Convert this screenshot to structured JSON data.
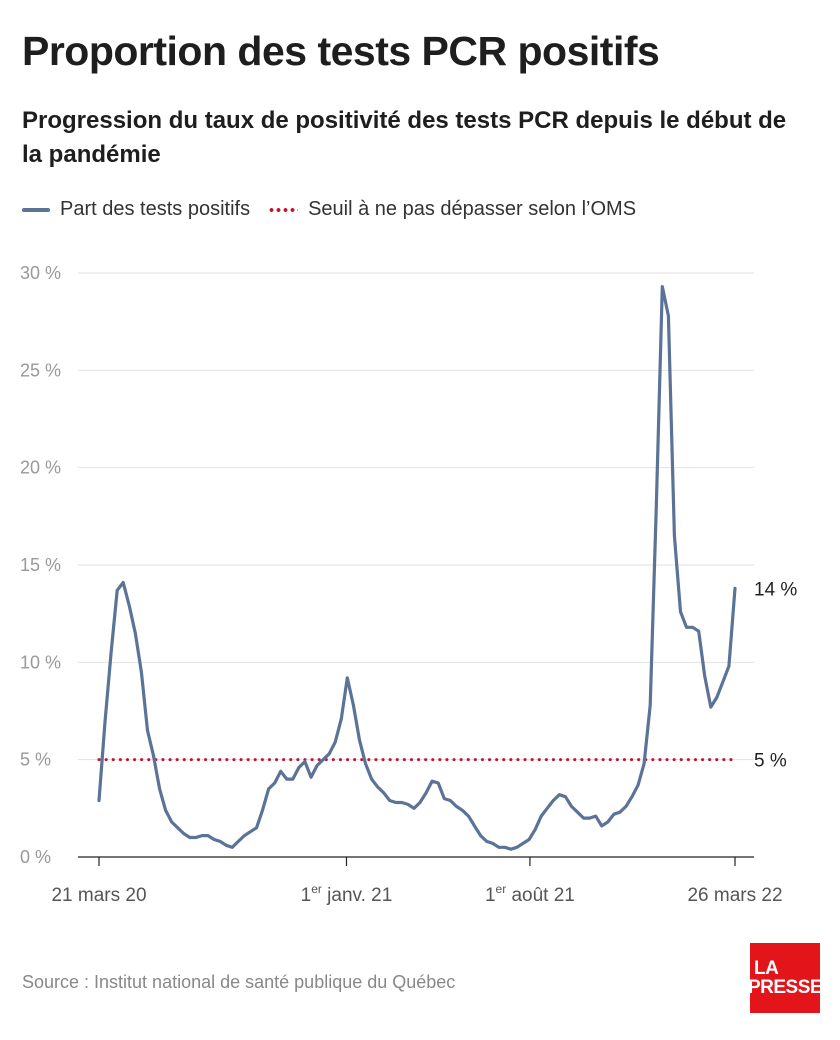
{
  "title": "Proportion des tests PCR positifs",
  "subtitle": "Progression du taux de positivité des tests PCR depuis le début de la pandémie",
  "legend": {
    "series_label": "Part des tests positifs",
    "threshold_label": "Seuil à ne pas dépasser selon l’OMS"
  },
  "source": "Source : Institut national de santé publique du Québec",
  "logo": {
    "line1": "LA",
    "line2": "PRESSE"
  },
  "colors": {
    "series": "#5a7397",
    "threshold": "#c8102e",
    "logo": "#e3151a"
  },
  "chart_data": {
    "type": "line",
    "x_unit": "date",
    "xlim": [
      "2020-03-21",
      "2022-03-26"
    ],
    "ylim": [
      0,
      30
    ],
    "y_ticks": [
      0,
      5,
      10,
      15,
      20,
      25,
      30
    ],
    "y_tick_labels": [
      "0 %",
      "5 %",
      "10 %",
      "15 %",
      "20 %",
      "25 %",
      "30 %"
    ],
    "x_ticks": [
      {
        "date": "2020-03-21",
        "label": "21 mars 20",
        "sup": ""
      },
      {
        "date": "2021-01-01",
        "label": " janv. 21",
        "prefix": "1",
        "sup": "er"
      },
      {
        "date": "2021-08-01",
        "label": " août 21",
        "prefix": "1",
        "sup": "er"
      },
      {
        "date": "2022-03-26",
        "label": "26 mars 22",
        "sup": ""
      }
    ],
    "grid": true,
    "legend_position": "top-left",
    "threshold": {
      "value": 5,
      "label": "5 %"
    },
    "end_label": "14 %",
    "series": [
      {
        "name": "Part des tests positifs",
        "points": [
          [
            "2020-03-21",
            2.9
          ],
          [
            "2020-03-28",
            7.0
          ],
          [
            "2020-04-04",
            10.5
          ],
          [
            "2020-04-11",
            13.7
          ],
          [
            "2020-04-18",
            14.1
          ],
          [
            "2020-04-25",
            12.9
          ],
          [
            "2020-05-02",
            11.5
          ],
          [
            "2020-05-09",
            9.5
          ],
          [
            "2020-05-16",
            6.5
          ],
          [
            "2020-05-23",
            5.2
          ],
          [
            "2020-05-30",
            3.5
          ],
          [
            "2020-06-06",
            2.4
          ],
          [
            "2020-06-13",
            1.8
          ],
          [
            "2020-06-20",
            1.5
          ],
          [
            "2020-06-27",
            1.2
          ],
          [
            "2020-07-04",
            1.0
          ],
          [
            "2020-07-11",
            1.0
          ],
          [
            "2020-07-18",
            1.1
          ],
          [
            "2020-07-25",
            1.1
          ],
          [
            "2020-08-01",
            0.9
          ],
          [
            "2020-08-08",
            0.8
          ],
          [
            "2020-08-15",
            0.6
          ],
          [
            "2020-08-22",
            0.5
          ],
          [
            "2020-08-29",
            0.8
          ],
          [
            "2020-09-05",
            1.1
          ],
          [
            "2020-09-12",
            1.3
          ],
          [
            "2020-09-19",
            1.5
          ],
          [
            "2020-09-26",
            2.4
          ],
          [
            "2020-10-03",
            3.5
          ],
          [
            "2020-10-10",
            3.8
          ],
          [
            "2020-10-17",
            4.4
          ],
          [
            "2020-10-24",
            4.0
          ],
          [
            "2020-10-31",
            4.0
          ],
          [
            "2020-11-07",
            4.6
          ],
          [
            "2020-11-14",
            4.9
          ],
          [
            "2020-11-21",
            4.1
          ],
          [
            "2020-11-28",
            4.7
          ],
          [
            "2020-12-05",
            5.0
          ],
          [
            "2020-12-12",
            5.3
          ],
          [
            "2020-12-19",
            5.9
          ],
          [
            "2020-12-26",
            7.1
          ],
          [
            "2021-01-02",
            9.2
          ],
          [
            "2021-01-09",
            7.8
          ],
          [
            "2021-01-16",
            6.0
          ],
          [
            "2021-01-23",
            4.8
          ],
          [
            "2021-01-30",
            4.0
          ],
          [
            "2021-02-06",
            3.6
          ],
          [
            "2021-02-13",
            3.3
          ],
          [
            "2021-02-20",
            2.9
          ],
          [
            "2021-02-27",
            2.8
          ],
          [
            "2021-03-06",
            2.8
          ],
          [
            "2021-03-13",
            2.7
          ],
          [
            "2021-03-20",
            2.5
          ],
          [
            "2021-03-27",
            2.8
          ],
          [
            "2021-04-03",
            3.3
          ],
          [
            "2021-04-10",
            3.9
          ],
          [
            "2021-04-17",
            3.8
          ],
          [
            "2021-04-24",
            3.0
          ],
          [
            "2021-05-01",
            2.9
          ],
          [
            "2021-05-08",
            2.6
          ],
          [
            "2021-05-15",
            2.4
          ],
          [
            "2021-05-22",
            2.1
          ],
          [
            "2021-05-29",
            1.6
          ],
          [
            "2021-06-05",
            1.1
          ],
          [
            "2021-06-12",
            0.8
          ],
          [
            "2021-06-19",
            0.7
          ],
          [
            "2021-06-26",
            0.5
          ],
          [
            "2021-07-03",
            0.5
          ],
          [
            "2021-07-10",
            0.4
          ],
          [
            "2021-07-17",
            0.5
          ],
          [
            "2021-07-24",
            0.7
          ],
          [
            "2021-07-31",
            0.9
          ],
          [
            "2021-08-07",
            1.4
          ],
          [
            "2021-08-14",
            2.1
          ],
          [
            "2021-08-21",
            2.5
          ],
          [
            "2021-08-28",
            2.9
          ],
          [
            "2021-09-04",
            3.2
          ],
          [
            "2021-09-11",
            3.1
          ],
          [
            "2021-09-18",
            2.6
          ],
          [
            "2021-09-25",
            2.3
          ],
          [
            "2021-10-02",
            2.0
          ],
          [
            "2021-10-09",
            2.0
          ],
          [
            "2021-10-16",
            2.1
          ],
          [
            "2021-10-23",
            1.6
          ],
          [
            "2021-10-30",
            1.8
          ],
          [
            "2021-11-06",
            2.2
          ],
          [
            "2021-11-13",
            2.3
          ],
          [
            "2021-11-20",
            2.6
          ],
          [
            "2021-11-27",
            3.1
          ],
          [
            "2021-12-04",
            3.7
          ],
          [
            "2021-12-11",
            4.8
          ],
          [
            "2021-12-18",
            7.8
          ],
          [
            "2021-12-25",
            18.0
          ],
          [
            "2022-01-01",
            29.3
          ],
          [
            "2022-01-08",
            27.8
          ],
          [
            "2022-01-15",
            16.5
          ],
          [
            "2022-01-22",
            12.6
          ],
          [
            "2022-01-29",
            11.8
          ],
          [
            "2022-02-05",
            11.8
          ],
          [
            "2022-02-12",
            11.6
          ],
          [
            "2022-02-19",
            9.3
          ],
          [
            "2022-02-26",
            7.7
          ],
          [
            "2022-03-05",
            8.2
          ],
          [
            "2022-03-12",
            9.0
          ],
          [
            "2022-03-19",
            9.8
          ],
          [
            "2022-03-26",
            13.8
          ]
        ]
      }
    ]
  }
}
